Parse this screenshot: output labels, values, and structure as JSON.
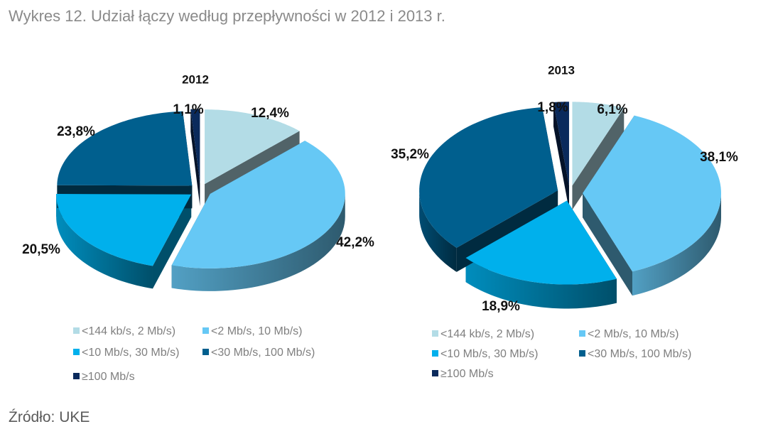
{
  "title": "Wykres 12. Udział łączy według przepływności w 2012 i 2013 r.",
  "source": "Źródło: UKE",
  "chart_data": [
    {
      "type": "pie",
      "title": "2012",
      "categories": [
        "<144 kb/s, 2 Mb/s)",
        "<2 Mb/s, 10 Mb/s)",
        "<10 Mb/s, 30 Mb/s)",
        "<30 Mb/s, 100 Mb/s)",
        "≥100 Mb/s"
      ],
      "values": [
        12.4,
        42.2,
        20.5,
        23.8,
        1.1
      ],
      "labels": [
        "12,4%",
        "42,2%",
        "20,5%",
        "23,8%",
        "1,1%"
      ],
      "colors": [
        "#b3dce6",
        "#66c8f5",
        "#00b0ec",
        "#005f8e",
        "#0a2a5c"
      ],
      "legend": "bottom"
    },
    {
      "type": "pie",
      "title": "2013",
      "categories": [
        "<144 kb/s, 2 Mb/s)",
        "<2 Mb/s, 10 Mb/s)",
        "<10 Mb/s, 30 Mb/s)",
        "<30 Mb/s, 100 Mb/s)",
        "≥100 Mb/s"
      ],
      "values": [
        6.1,
        38.1,
        18.9,
        35.2,
        1.8
      ],
      "labels": [
        "6,1%",
        "38,1%",
        "18,9%",
        "35,2%",
        "1,8%"
      ],
      "colors": [
        "#b3dce6",
        "#66c8f5",
        "#00b0ec",
        "#005f8e",
        "#0a2a5c"
      ],
      "legend": "bottom"
    }
  ]
}
